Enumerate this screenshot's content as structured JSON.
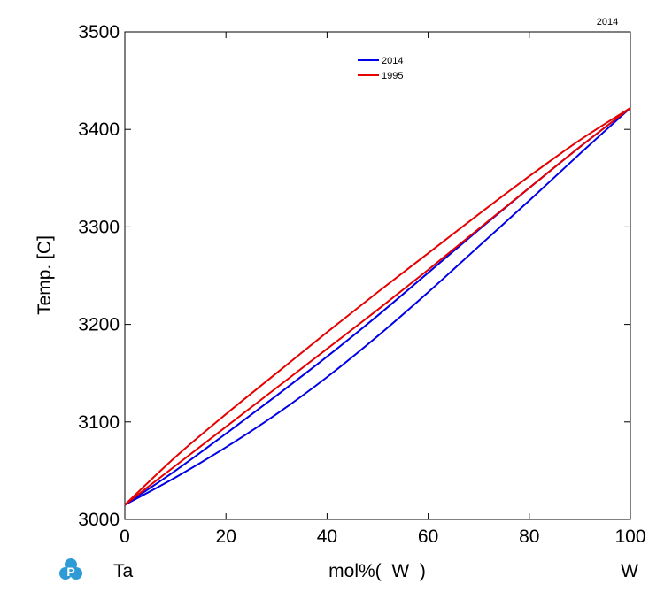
{
  "header": {
    "version_label": "2014"
  },
  "footer": {
    "left_element": "Ta",
    "composition_label": "mol%(  W  )",
    "right_element": "W"
  },
  "legend": [
    {
      "name": "2014",
      "color": "#0000e6"
    },
    {
      "name": "1995",
      "color": "#e60000"
    }
  ],
  "logo": {
    "icon": "pandat-logo-icon",
    "letter": "P",
    "color": "#2e9bd6"
  },
  "chart_data": {
    "type": "line",
    "title": "",
    "xlabel": "",
    "ylabel": "Temp.  [C]",
    "xlim": [
      0,
      100
    ],
    "ylim": [
      3000,
      3500
    ],
    "xticks": [
      0,
      20,
      40,
      60,
      80,
      100
    ],
    "yticks": [
      3000,
      3100,
      3200,
      3300,
      3400,
      3500
    ],
    "grid": false,
    "legend_position": "top-center",
    "series": [
      {
        "name": "2014",
        "color": "#0000e6",
        "boundary": "liquidus",
        "x": [
          0,
          10,
          20,
          30,
          40,
          50,
          60,
          70,
          80,
          90,
          100
        ],
        "y": [
          3015,
          3050,
          3088,
          3127,
          3167,
          3209,
          3253,
          3297,
          3340,
          3382,
          3422
        ]
      },
      {
        "name": "2014",
        "color": "#0000e6",
        "boundary": "solidus",
        "x": [
          0,
          10,
          20,
          30,
          40,
          50,
          60,
          70,
          80,
          90,
          100
        ],
        "y": [
          3015,
          3043,
          3074,
          3108,
          3146,
          3188,
          3233,
          3280,
          3327,
          3375,
          3422
        ]
      },
      {
        "name": "1995",
        "color": "#e60000",
        "boundary": "liquidus",
        "x": [
          0,
          10,
          20,
          30,
          40,
          50,
          60,
          70,
          80,
          90,
          100
        ],
        "y": [
          3015,
          3064,
          3108,
          3150,
          3192,
          3233,
          3273,
          3313,
          3352,
          3389,
          3422
        ]
      },
      {
        "name": "1995",
        "color": "#e60000",
        "boundary": "solidus",
        "x": [
          0,
          10,
          20,
          30,
          40,
          50,
          60,
          70,
          80,
          90,
          100
        ],
        "y": [
          3015,
          3055,
          3095,
          3135,
          3175,
          3215,
          3256,
          3298,
          3340,
          3382,
          3422
        ]
      }
    ]
  }
}
